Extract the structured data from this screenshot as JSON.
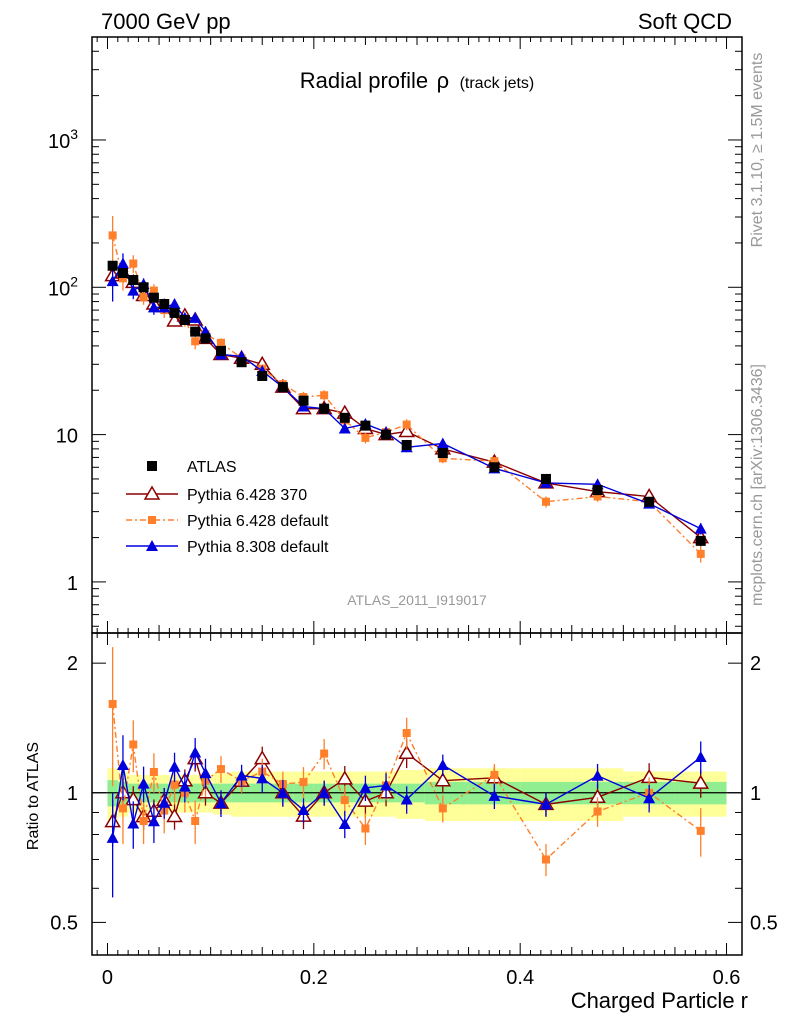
{
  "header": {
    "left": "7000 GeV pp",
    "right": "Soft QCD"
  },
  "side_labels": {
    "rivet": "Rivet 3.1.10, ≥ 1.5M events",
    "mcplots": "mcplots.cern.ch [arXiv:1306.3436]"
  },
  "chart_data": {
    "type": "scatter",
    "title": "Radial profile",
    "title_symbol": "ρ",
    "subtitle": "(track jets)",
    "watermark": "ATLAS_2011_I919017",
    "xlabel": "Charged Particle r",
    "ylabel": "",
    "ratio_ylabel": "Ratio to ATLAS",
    "xlim": [
      -0.015,
      0.615
    ],
    "ylim": [
      0.45,
      5000
    ],
    "yscale": "log",
    "ratio_ylim": [
      0.42,
      2.35
    ],
    "ratio_yscale": "log",
    "x_ticks": [
      {
        "value": 0,
        "label": "0"
      },
      {
        "value": 0.2,
        "label": "0.2"
      },
      {
        "value": 0.4,
        "label": "0.4"
      },
      {
        "value": 0.6,
        "label": "0.6"
      }
    ],
    "y_ticks": [
      {
        "value": 1,
        "label": "1"
      },
      {
        "value": 10,
        "label": "10"
      },
      {
        "value": 100,
        "label": "10",
        "sup": "2"
      },
      {
        "value": 1000,
        "label": "10",
        "sup": "3"
      }
    ],
    "ratio_ticks": [
      {
        "value": 0.5,
        "label": "0.5"
      },
      {
        "value": 1,
        "label": "1"
      },
      {
        "value": 2,
        "label": "2"
      }
    ],
    "legend_position": "bottom-left",
    "x": [
      0.005,
      0.015,
      0.025,
      0.035,
      0.045,
      0.055,
      0.065,
      0.075,
      0.085,
      0.095,
      0.11,
      0.13,
      0.15,
      0.17,
      0.19,
      0.21,
      0.23,
      0.25,
      0.27,
      0.29,
      0.325,
      0.375,
      0.425,
      0.475,
      0.525,
      0.575
    ],
    "series": [
      {
        "name": "ATLAS",
        "marker": "square",
        "color": "#000000",
        "values": [
          140,
          125,
          112,
          100,
          85,
          77,
          67,
          60,
          50,
          45,
          37,
          31,
          25,
          21,
          17,
          15,
          13,
          11.5,
          10,
          8.5,
          7.5,
          6,
          5,
          4.2,
          3.5,
          1.9
        ],
        "errors": [
          8,
          6,
          5,
          4,
          4,
          3,
          3,
          3,
          2.5,
          2,
          1.5,
          1.5,
          1.2,
          1,
          0.8,
          0.8,
          0.6,
          0.5,
          0.5,
          0.4,
          0.3,
          0.3,
          0.3,
          0.25,
          0.2,
          0.15
        ]
      },
      {
        "name": "Pythia 6.428 370",
        "marker": "triangle-open",
        "color": "#8b0000",
        "values": [
          120,
          125,
          108,
          88,
          77,
          74,
          59,
          64,
          60,
          45,
          35,
          33,
          30,
          21,
          15,
          15,
          14,
          11,
          10,
          10.5,
          8,
          6.5,
          4.7,
          4.1,
          3.8,
          2
        ],
        "errors": [
          15,
          10,
          8,
          6,
          5,
          5,
          4,
          4,
          4,
          3,
          2,
          2,
          2,
          1.5,
          1,
          1,
          1,
          0.8,
          0.7,
          0.8,
          0.5,
          0.4,
          0.3,
          0.3,
          0.3,
          0.15
        ]
      },
      {
        "name": "Pythia 6.428 default",
        "marker": "square-small",
        "color": "#ff7f2a",
        "values": [
          225,
          115,
          145,
          86,
          95,
          70,
          70,
          60,
          43,
          48,
          42,
          33,
          28,
          22,
          18,
          18.5,
          12.5,
          9.5,
          10.4,
          11.7,
          6.9,
          6.6,
          3.5,
          3.8,
          3.5,
          1.55
        ],
        "errors": [
          80,
          20,
          20,
          10,
          10,
          8,
          7,
          6,
          5,
          4,
          3,
          2,
          2,
          1.5,
          1.5,
          1.5,
          1,
          0.8,
          0.8,
          1,
          0.5,
          0.4,
          0.3,
          0.3,
          0.3,
          0.2
        ]
      },
      {
        "name": "Pythia 8.308 default",
        "marker": "triangle",
        "color": "#0000dd",
        "values": [
          110,
          145,
          95,
          105,
          73,
          73,
          77,
          62,
          62,
          50,
          35,
          34,
          27,
          21,
          15.5,
          15,
          11,
          11.8,
          10.4,
          8.2,
          8.7,
          5.9,
          4.7,
          4.6,
          3.4,
          2.3
        ],
        "errors": [
          30,
          25,
          12,
          10,
          8,
          6,
          6,
          5,
          5,
          4,
          2.5,
          2,
          2,
          1.5,
          1,
          1,
          0.8,
          0.8,
          0.7,
          0.6,
          0.5,
          0.4,
          0.3,
          0.3,
          0.25,
          0.2
        ]
      }
    ],
    "ratio_band_halfwidths": {
      "inner": [
        0.07,
        0.06,
        0.05,
        0.05,
        0.05,
        0.05,
        0.05,
        0.05,
        0.05,
        0.05,
        0.05,
        0.05,
        0.05,
        0.05,
        0.05,
        0.05,
        0.05,
        0.05,
        0.05,
        0.05,
        0.06,
        0.06,
        0.06,
        0.06,
        0.06,
        0.06
      ],
      "outer": [
        0.14,
        0.12,
        0.1,
        0.1,
        0.1,
        0.1,
        0.1,
        0.1,
        0.1,
        0.1,
        0.11,
        0.12,
        0.12,
        0.12,
        0.12,
        0.12,
        0.12,
        0.12,
        0.12,
        0.13,
        0.14,
        0.14,
        0.14,
        0.14,
        0.12,
        0.12
      ]
    },
    "band_colors": {
      "inner": "#90ee90",
      "outer": "#ffff99"
    }
  }
}
